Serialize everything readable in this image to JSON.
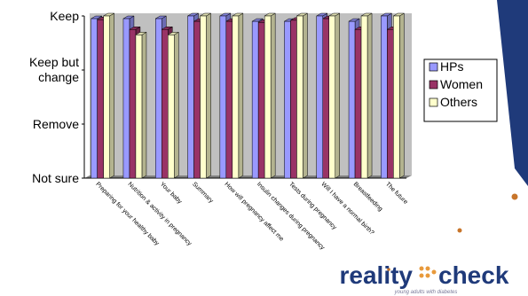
{
  "chart_data": {
    "type": "bar",
    "orientation": "vertical",
    "categories": [
      "Preparing for your healthy baby",
      "Nutrition & activity in pregnancy",
      "Your baby",
      "Summary",
      "How will pregnancy affect me",
      "Insulin changes during pregnancy",
      "Tests during pregnancy",
      "Will I have a normal birth?",
      "Breastfeeding",
      "The future"
    ],
    "y_tick_labels": [
      "Not sure",
      "Remove",
      "Keep but change",
      "Keep"
    ],
    "ylim": [
      1,
      4
    ],
    "series": [
      {
        "name": "HPs",
        "color": "#9999ff",
        "values": [
          3.95,
          3.95,
          3.95,
          4.0,
          4.0,
          3.9,
          3.9,
          4.0,
          3.9,
          4.0
        ]
      },
      {
        "name": "Women",
        "color": "#993366",
        "values": [
          3.93,
          3.75,
          3.75,
          3.9,
          3.9,
          3.88,
          3.92,
          3.95,
          3.75,
          3.75
        ]
      },
      {
        "name": "Others",
        "color": "#ffffcc",
        "values": [
          4.0,
          3.65,
          3.65,
          4.0,
          4.0,
          4.0,
          4.0,
          4.0,
          4.0,
          4.0
        ]
      }
    ],
    "legend_position": "right",
    "plot_background": "#c0c0c0",
    "grid": false
  },
  "logo": {
    "word1": "reality",
    "word2": "check",
    "tagline": "young adults with diabetes",
    "color_word1": "#1f3a7a",
    "color_dots": "#e89a3c"
  },
  "theme": {
    "accent": "#1f3a7a",
    "dot_color": "#c8752a"
  }
}
